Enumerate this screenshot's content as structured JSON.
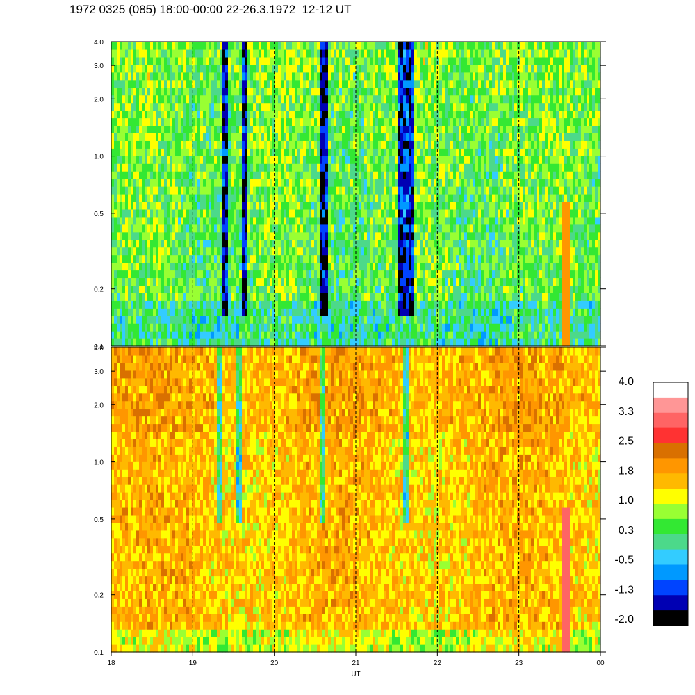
{
  "header": {
    "title": "1972 0325 (085) 18:00-00:00 22-26.3.1972  12-12 UT"
  },
  "chart_data": {
    "type": "heatmap",
    "xlabel": "UT",
    "x_ticks": [
      "18",
      "19",
      "20",
      "21",
      "22",
      "23",
      "00"
    ],
    "y_scale": "log",
    "ylim": [
      0.1,
      4.0
    ],
    "y_ticks": [
      "0.1",
      "0.2",
      "0.5",
      "1.0",
      "2.0",
      "3.0",
      "4.0"
    ],
    "grid": "dashed vertical lines at each hour",
    "panels": [
      {
        "name": "upper",
        "dominant_level_range": [
          -1.3,
          1.0
        ]
      },
      {
        "name": "lower",
        "dominant_level_range": [
          0.3,
          2.5
        ]
      }
    ],
    "colorbar": {
      "labels": [
        "4.0",
        "3.3",
        "2.5",
        "1.8",
        "1.0",
        "0.3",
        "-0.5",
        "-1.3",
        "-2.0"
      ],
      "colors": [
        "#ffffff",
        "#ff9696",
        "#ff6464",
        "#ff3232",
        "#d97000",
        "#ff9600",
        "#ffb900",
        "#ffff00",
        "#99ff33",
        "#33e833",
        "#4cd98a",
        "#33ccff",
        "#0099ff",
        "#0044ff",
        "#0000b3",
        "#000000"
      ]
    }
  }
}
